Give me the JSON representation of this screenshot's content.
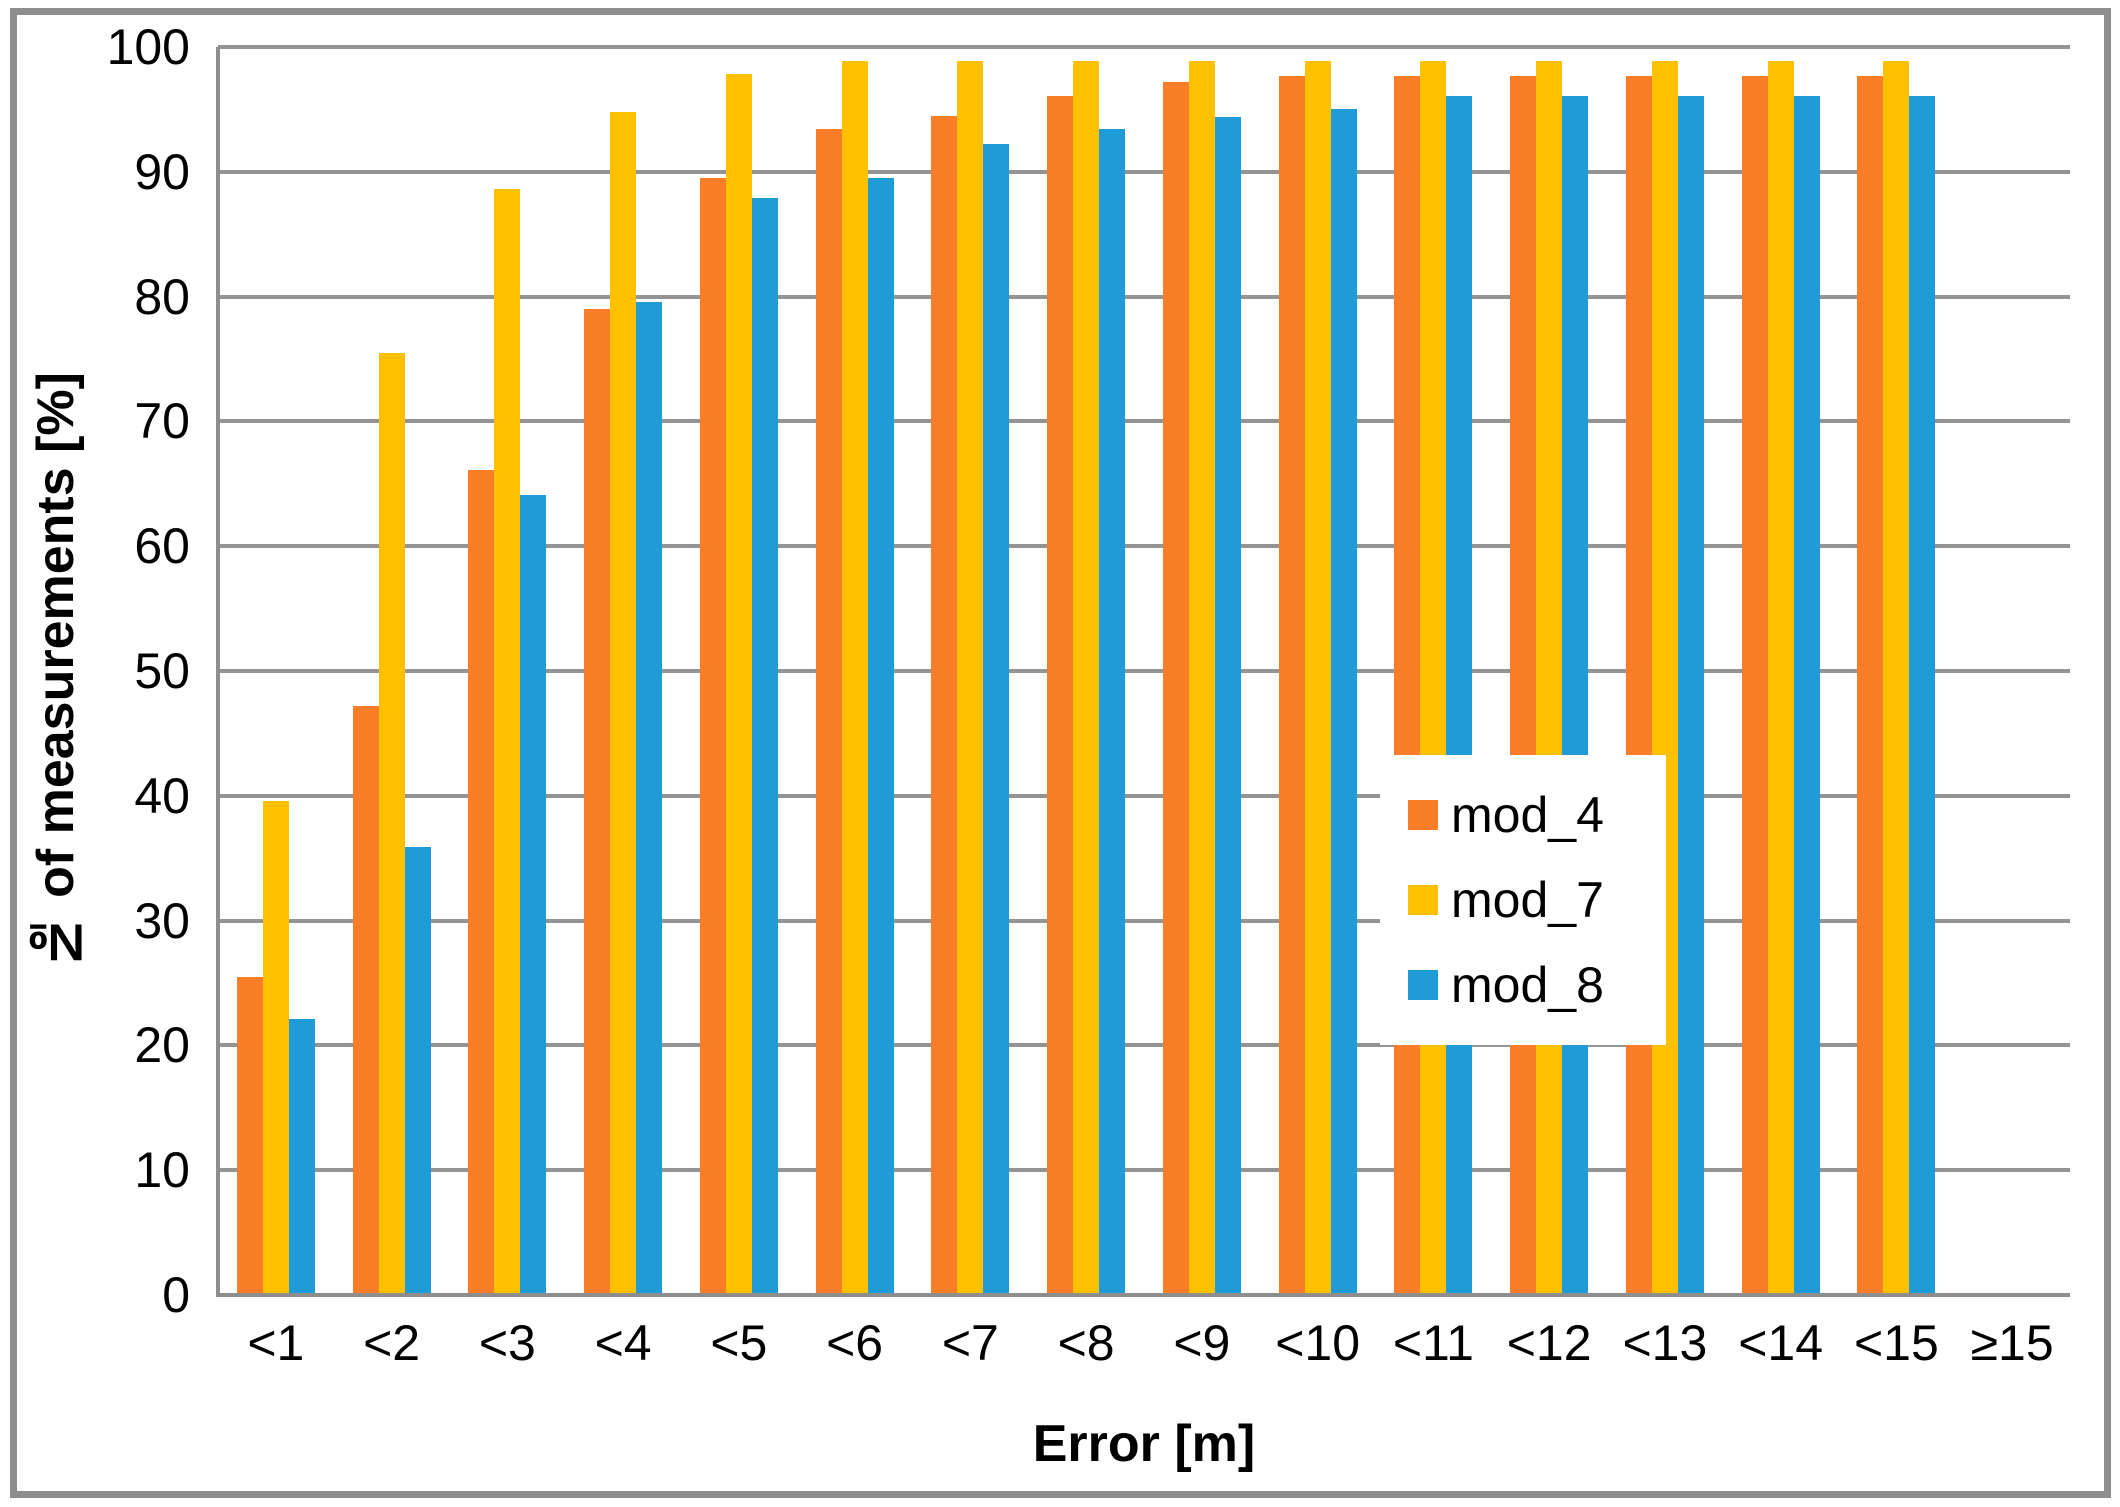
{
  "chart_data": {
    "type": "bar",
    "title": "",
    "xlabel": "Error [m]",
    "ylabel": "№ of measurements [%]",
    "categories": [
      "<1",
      "<2",
      "<3",
      "<4",
      "<5",
      "<6",
      "<7",
      "<8",
      "<9",
      "<10",
      "<11",
      "<12",
      "<13",
      "<14",
      "<15",
      "≥15"
    ],
    "series": [
      {
        "name": "mod_4",
        "color": "#FA7D28",
        "values": [
          25.5,
          47.2,
          66.1,
          79.0,
          89.5,
          93.4,
          94.5,
          96.1,
          97.2,
          97.7,
          97.7,
          97.7,
          97.7,
          97.7,
          97.7,
          0
        ]
      },
      {
        "name": "mod_7",
        "color": "#FFC000",
        "values": [
          39.6,
          75.5,
          88.6,
          94.8,
          97.8,
          98.9,
          98.9,
          98.9,
          98.9,
          98.9,
          98.9,
          98.9,
          98.9,
          98.9,
          98.9,
          0
        ]
      },
      {
        "name": "mod_8",
        "color": "#1F9BD7",
        "values": [
          22.1,
          35.9,
          64.1,
          79.6,
          87.9,
          89.5,
          92.2,
          93.4,
          94.4,
          95.0,
          96.1,
          96.1,
          96.1,
          96.1,
          96.1,
          0
        ]
      }
    ],
    "y_axis": {
      "min": 0,
      "max": 100,
      "tick_step": 10,
      "ticks": [
        0,
        10,
        20,
        30,
        40,
        50,
        60,
        70,
        80,
        90,
        100
      ]
    },
    "grid": "horizontal",
    "legend": {
      "position": "inside-right",
      "items": [
        "mod_4",
        "mod_7",
        "mod_8"
      ]
    },
    "colors": {
      "background": "#FFFFFF",
      "gridline": "#949494",
      "axis_line": "#8E8E8E",
      "frame": "#8E8E8E",
      "text": "#000000"
    }
  }
}
